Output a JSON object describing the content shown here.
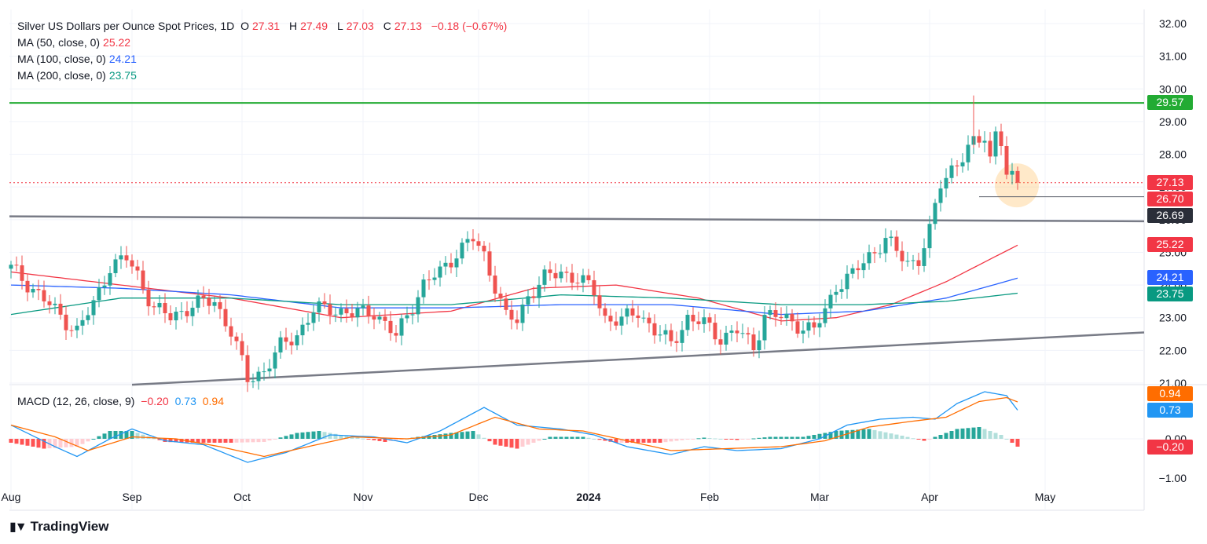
{
  "header": {
    "symbol": "Silver US Dollars per Ounce Spot Prices, 1D",
    "o_label": "O",
    "o_value": "27.31",
    "h_label": "H",
    "h_value": "27.49",
    "l_label": "L",
    "l_value": "27.03",
    "c_label": "C",
    "c_value": "27.13",
    "change": "−0.18 (−0.67%)"
  },
  "ma_legend": [
    {
      "label": "MA (50, close, 0)",
      "value": "25.22",
      "color": "#f23645"
    },
    {
      "label": "MA (100, close, 0)",
      "value": "24.21",
      "color": "#2962ff"
    },
    {
      "label": "MA (200, close, 0)",
      "value": "23.75",
      "color": "#089981"
    }
  ],
  "macd_legend": {
    "label": "MACD (12, 26, close, 9)",
    "hist": "−0.20",
    "macd": "0.73",
    "signal": "0.94"
  },
  "price_labels": {
    "resistance": "29.57",
    "last": "27.13",
    "low_marker": "26.70",
    "trendline": "26.69",
    "ma50": "25.22",
    "ma100": "24.21",
    "ma200": "23.75"
  },
  "macd_labels": {
    "signal": "0.94",
    "macd": "0.73",
    "hist": "−0.20"
  },
  "brand": {
    "name": "TradingView"
  },
  "colors": {
    "up": "#26a69a",
    "down": "#ef5350",
    "resistance": "#22ab33",
    "trend": "#787b86",
    "ma50": "#f23645",
    "ma100": "#2962ff",
    "ma200": "#089981",
    "macd": "#2196f3",
    "signal": "#ff6d00"
  },
  "chart_data": {
    "type": "candlestick",
    "title": "Silver US Dollars per Ounce Spot Prices, 1D",
    "y_axis_ticks": [
      "32.00",
      "31.00",
      "30.00",
      "29.00",
      "28.00",
      "27.00",
      "26.00",
      "25.00",
      "24.00",
      "23.00",
      "22.00",
      "21.00"
    ],
    "x_axis_ticks": [
      {
        "label": "Aug",
        "day": 0
      },
      {
        "label": "Sep",
        "day": 22
      },
      {
        "label": "Oct",
        "day": 42
      },
      {
        "label": "Nov",
        "day": 64
      },
      {
        "label": "Dec",
        "day": 85
      },
      {
        "label": "2024",
        "day": 105
      },
      {
        "label": "Feb",
        "day": 127
      },
      {
        "label": "Mar",
        "day": 147
      },
      {
        "label": "Apr",
        "day": 167
      },
      {
        "label": "May",
        "day": 188
      }
    ],
    "ylim": [
      20.9,
      32.2
    ],
    "resistance_level": 29.57,
    "last_close": 27.13,
    "support_marker": 26.7,
    "upper_trendline": {
      "start": {
        "day": 0,
        "price": 26.1
      },
      "end": {
        "day": 207,
        "price": 25.95
      }
    },
    "lower_trendline": {
      "start": {
        "day": 22,
        "price": 20.95
      },
      "end": {
        "day": 207,
        "price": 22.55
      }
    },
    "highlight": {
      "day": 182,
      "price": 27.05
    },
    "close_series": [
      {
        "day": 0,
        "close": 24.5
      },
      {
        "day": 4,
        "close": 23.9
      },
      {
        "day": 8,
        "close": 23.2
      },
      {
        "day": 12,
        "close": 22.6
      },
      {
        "day": 15,
        "close": 23.4
      },
      {
        "day": 18,
        "close": 24.6
      },
      {
        "day": 21,
        "close": 24.8
      },
      {
        "day": 23,
        "close": 24.3
      },
      {
        "day": 26,
        "close": 23.3
      },
      {
        "day": 29,
        "close": 23.0
      },
      {
        "day": 33,
        "close": 23.4
      },
      {
        "day": 37,
        "close": 23.5
      },
      {
        "day": 40,
        "close": 22.6
      },
      {
        "day": 43,
        "close": 21.1
      },
      {
        "day": 46,
        "close": 21.4
      },
      {
        "day": 49,
        "close": 22.1
      },
      {
        "day": 52,
        "close": 22.5
      },
      {
        "day": 55,
        "close": 23.2
      },
      {
        "day": 58,
        "close": 23.3
      },
      {
        "day": 62,
        "close": 23.1
      },
      {
        "day": 66,
        "close": 23.2
      },
      {
        "day": 70,
        "close": 22.4
      },
      {
        "day": 72,
        "close": 23.1
      },
      {
        "day": 75,
        "close": 24.0
      },
      {
        "day": 78,
        "close": 24.4
      },
      {
        "day": 81,
        "close": 25.0
      },
      {
        "day": 84,
        "close": 25.4
      },
      {
        "day": 86,
        "close": 24.9
      },
      {
        "day": 88,
        "close": 24.0
      },
      {
        "day": 90,
        "close": 23.0
      },
      {
        "day": 92,
        "close": 22.9
      },
      {
        "day": 94,
        "close": 23.7
      },
      {
        "day": 97,
        "close": 24.2
      },
      {
        "day": 100,
        "close": 24.4
      },
      {
        "day": 103,
        "close": 24.2
      },
      {
        "day": 106,
        "close": 23.8
      },
      {
        "day": 108,
        "close": 23.0
      },
      {
        "day": 111,
        "close": 22.9
      },
      {
        "day": 114,
        "close": 23.2
      },
      {
        "day": 117,
        "close": 22.6
      },
      {
        "day": 120,
        "close": 22.2
      },
      {
        "day": 123,
        "close": 23.0
      },
      {
        "day": 126,
        "close": 22.8
      },
      {
        "day": 129,
        "close": 22.4
      },
      {
        "day": 132,
        "close": 22.6
      },
      {
        "day": 135,
        "close": 22.1
      },
      {
        "day": 137,
        "close": 23.1
      },
      {
        "day": 140,
        "close": 23.0
      },
      {
        "day": 143,
        "close": 22.8
      },
      {
        "day": 146,
        "close": 22.6
      },
      {
        "day": 148,
        "close": 23.2
      },
      {
        "day": 150,
        "close": 24.0
      },
      {
        "day": 153,
        "close": 24.3
      },
      {
        "day": 156,
        "close": 24.9
      },
      {
        "day": 159,
        "close": 25.4
      },
      {
        "day": 161,
        "close": 25.0
      },
      {
        "day": 163,
        "close": 24.7
      },
      {
        "day": 165,
        "close": 24.8
      },
      {
        "day": 167,
        "close": 25.6
      },
      {
        "day": 169,
        "close": 27.1
      },
      {
        "day": 171,
        "close": 27.6
      },
      {
        "day": 173,
        "close": 27.9
      },
      {
        "day": 175,
        "close": 28.3
      },
      {
        "day": 177,
        "close": 28.6
      },
      {
        "day": 178,
        "close": 27.9
      },
      {
        "day": 179,
        "close": 28.7
      },
      {
        "day": 180,
        "close": 28.4
      },
      {
        "day": 181,
        "close": 27.3
      },
      {
        "day": 182,
        "close": 27.2
      },
      {
        "day": 183,
        "close": 27.13
      }
    ],
    "ma_series": [
      {
        "name": "MA 50",
        "last": 25.22,
        "points": [
          {
            "day": 0,
            "v": 24.4
          },
          {
            "day": 20,
            "v": 24.0
          },
          {
            "day": 40,
            "v": 23.6
          },
          {
            "day": 60,
            "v": 23.0
          },
          {
            "day": 80,
            "v": 23.2
          },
          {
            "day": 95,
            "v": 23.9
          },
          {
            "day": 110,
            "v": 24.0
          },
          {
            "day": 125,
            "v": 23.6
          },
          {
            "day": 140,
            "v": 22.9
          },
          {
            "day": 150,
            "v": 23.0
          },
          {
            "day": 160,
            "v": 23.4
          },
          {
            "day": 170,
            "v": 24.1
          },
          {
            "day": 183,
            "v": 25.22
          }
        ]
      },
      {
        "name": "MA 100",
        "last": 24.21,
        "points": [
          {
            "day": 0,
            "v": 24.0
          },
          {
            "day": 20,
            "v": 23.9
          },
          {
            "day": 40,
            "v": 23.7
          },
          {
            "day": 60,
            "v": 23.3
          },
          {
            "day": 80,
            "v": 23.3
          },
          {
            "day": 100,
            "v": 23.4
          },
          {
            "day": 120,
            "v": 23.4
          },
          {
            "day": 140,
            "v": 23.1
          },
          {
            "day": 155,
            "v": 23.2
          },
          {
            "day": 170,
            "v": 23.6
          },
          {
            "day": 183,
            "v": 24.21
          }
        ]
      },
      {
        "name": "MA 200",
        "last": 23.75,
        "points": [
          {
            "day": 0,
            "v": 23.1
          },
          {
            "day": 20,
            "v": 23.6
          },
          {
            "day": 40,
            "v": 23.6
          },
          {
            "day": 60,
            "v": 23.4
          },
          {
            "day": 80,
            "v": 23.4
          },
          {
            "day": 100,
            "v": 23.7
          },
          {
            "day": 120,
            "v": 23.6
          },
          {
            "day": 140,
            "v": 23.4
          },
          {
            "day": 155,
            "v": 23.4
          },
          {
            "day": 170,
            "v": 23.5
          },
          {
            "day": 183,
            "v": 23.75
          }
        ]
      }
    ],
    "macd": {
      "y_ticks": [
        "0.00",
        "−1.00"
      ],
      "ylim": [
        -1.2,
        1.35
      ],
      "macd_line": [
        {
          "day": 0,
          "v": 0.35
        },
        {
          "day": 8,
          "v": -0.2
        },
        {
          "day": 12,
          "v": -0.45
        },
        {
          "day": 18,
          "v": 0.0
        },
        {
          "day": 22,
          "v": 0.25
        },
        {
          "day": 28,
          "v": -0.05
        },
        {
          "day": 35,
          "v": -0.15
        },
        {
          "day": 43,
          "v": -0.6
        },
        {
          "day": 50,
          "v": -0.35
        },
        {
          "day": 58,
          "v": 0.1
        },
        {
          "day": 66,
          "v": 0.05
        },
        {
          "day": 72,
          "v": -0.1
        },
        {
          "day": 78,
          "v": 0.2
        },
        {
          "day": 86,
          "v": 0.8
        },
        {
          "day": 92,
          "v": 0.35
        },
        {
          "day": 100,
          "v": 0.25
        },
        {
          "day": 106,
          "v": 0.1
        },
        {
          "day": 112,
          "v": -0.2
        },
        {
          "day": 120,
          "v": -0.4
        },
        {
          "day": 126,
          "v": -0.2
        },
        {
          "day": 132,
          "v": -0.3
        },
        {
          "day": 140,
          "v": -0.25
        },
        {
          "day": 147,
          "v": 0.0
        },
        {
          "day": 152,
          "v": 0.35
        },
        {
          "day": 158,
          "v": 0.5
        },
        {
          "day": 164,
          "v": 0.55
        },
        {
          "day": 168,
          "v": 0.5
        },
        {
          "day": 172,
          "v": 0.9
        },
        {
          "day": 177,
          "v": 1.2
        },
        {
          "day": 181,
          "v": 1.1
        },
        {
          "day": 183,
          "v": 0.73
        }
      ],
      "signal_line": [
        {
          "day": 0,
          "v": 0.35
        },
        {
          "day": 8,
          "v": 0.05
        },
        {
          "day": 14,
          "v": -0.3
        },
        {
          "day": 22,
          "v": 0.05
        },
        {
          "day": 30,
          "v": 0.0
        },
        {
          "day": 38,
          "v": -0.2
        },
        {
          "day": 46,
          "v": -0.45
        },
        {
          "day": 54,
          "v": -0.2
        },
        {
          "day": 62,
          "v": 0.05
        },
        {
          "day": 72,
          "v": 0.0
        },
        {
          "day": 80,
          "v": 0.1
        },
        {
          "day": 88,
          "v": 0.55
        },
        {
          "day": 96,
          "v": 0.25
        },
        {
          "day": 104,
          "v": 0.2
        },
        {
          "day": 112,
          "v": -0.05
        },
        {
          "day": 120,
          "v": -0.3
        },
        {
          "day": 130,
          "v": -0.25
        },
        {
          "day": 140,
          "v": -0.2
        },
        {
          "day": 148,
          "v": -0.05
        },
        {
          "day": 156,
          "v": 0.3
        },
        {
          "day": 164,
          "v": 0.45
        },
        {
          "day": 170,
          "v": 0.55
        },
        {
          "day": 176,
          "v": 0.95
        },
        {
          "day": 181,
          "v": 1.05
        },
        {
          "day": 183,
          "v": 0.94
        }
      ],
      "histogram": [
        {
          "day": 0,
          "v": -0.1
        },
        {
          "day": 6,
          "v": -0.25
        },
        {
          "day": 12,
          "v": -0.2
        },
        {
          "day": 18,
          "v": 0.2
        },
        {
          "day": 22,
          "v": 0.2
        },
        {
          "day": 28,
          "v": -0.08
        },
        {
          "day": 34,
          "v": -0.1
        },
        {
          "day": 40,
          "v": -0.1
        },
        {
          "day": 46,
          "v": -0.08
        },
        {
          "day": 52,
          "v": 0.15
        },
        {
          "day": 56,
          "v": 0.2
        },
        {
          "day": 62,
          "v": 0.05
        },
        {
          "day": 68,
          "v": -0.08
        },
        {
          "day": 74,
          "v": 0.05
        },
        {
          "day": 80,
          "v": 0.15
        },
        {
          "day": 84,
          "v": 0.2
        },
        {
          "day": 88,
          "v": -0.15
        },
        {
          "day": 92,
          "v": -0.25
        },
        {
          "day": 98,
          "v": 0.05
        },
        {
          "day": 104,
          "v": 0.05
        },
        {
          "day": 110,
          "v": -0.1
        },
        {
          "day": 118,
          "v": -0.1
        },
        {
          "day": 126,
          "v": 0.03
        },
        {
          "day": 132,
          "v": -0.03
        },
        {
          "day": 138,
          "v": 0.05
        },
        {
          "day": 144,
          "v": 0.05
        },
        {
          "day": 150,
          "v": 0.2
        },
        {
          "day": 156,
          "v": 0.25
        },
        {
          "day": 162,
          "v": 0.08
        },
        {
          "day": 166,
          "v": -0.05
        },
        {
          "day": 172,
          "v": 0.25
        },
        {
          "day": 176,
          "v": 0.3
        },
        {
          "day": 180,
          "v": 0.1
        },
        {
          "day": 183,
          "v": -0.2
        }
      ]
    }
  }
}
